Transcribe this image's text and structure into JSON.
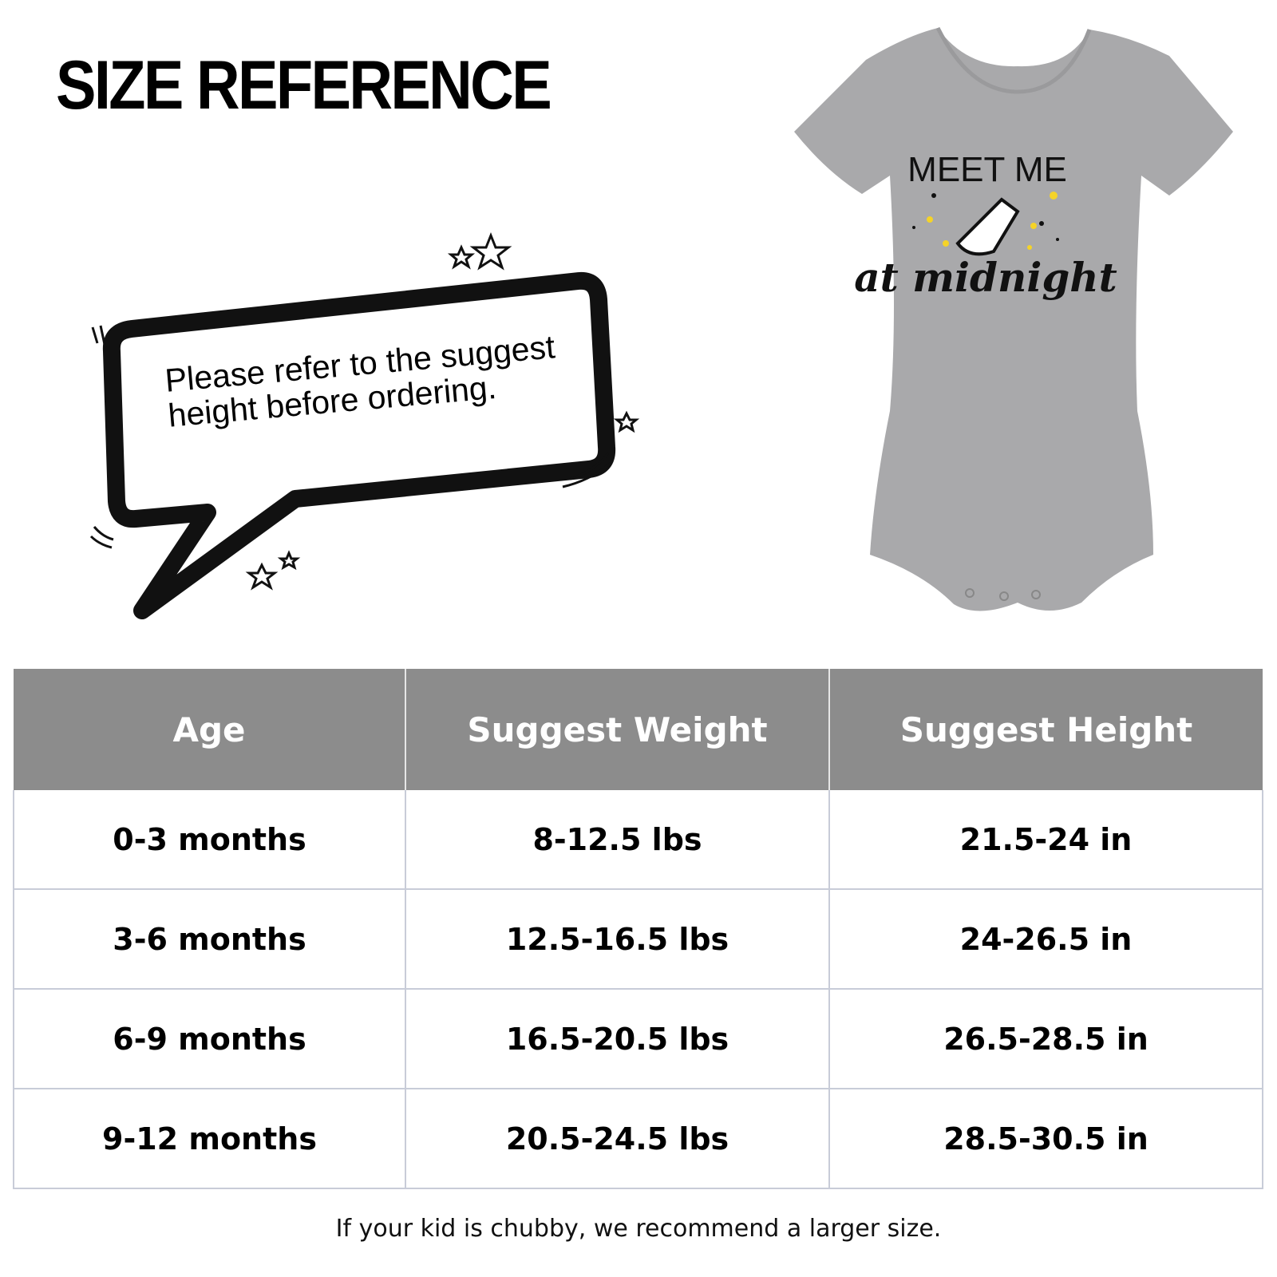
{
  "title": "SIZE REFERENCE",
  "bubble": {
    "text": "Please refer to the suggest height before ordering."
  },
  "product": {
    "print_line1": "MEET ME",
    "print_line2": "at midnight",
    "color": "#a9a9ab"
  },
  "table": {
    "headers": [
      "Age",
      "Suggest Weight",
      "Suggest Height"
    ],
    "rows": [
      [
        "0-3 months",
        "8-12.5 lbs",
        "21.5-24 in"
      ],
      [
        "3-6 months",
        "12.5-16.5 lbs",
        "24-26.5 in"
      ],
      [
        "6-9 months",
        "16.5-20.5 lbs",
        "26.5-28.5 in"
      ],
      [
        "9-12 months",
        "20.5-24.5 lbs",
        "28.5-30.5 in"
      ]
    ],
    "header_color": "#8c8c8c"
  },
  "note": "If your kid is chubby, we recommend a larger size."
}
